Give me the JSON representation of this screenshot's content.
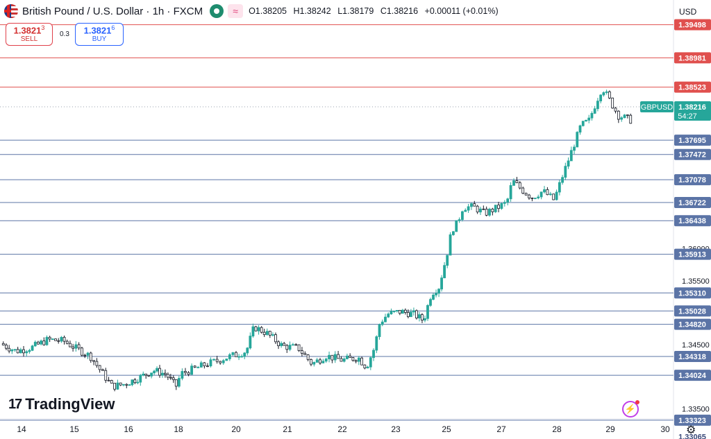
{
  "header": {
    "title": "British Pound / U.S. Dollar · 1h · FXCM",
    "ohlc": {
      "open": "O1.38205",
      "high": "H1.38242",
      "low": "L1.38179",
      "close": "C1.38216",
      "change": "+0.00011 (+0.01%)"
    }
  },
  "trade": {
    "sell_price": "1.3821",
    "sell_sup": "3",
    "sell_label": "SELL",
    "spread": "0.3",
    "buy_price": "1.3821",
    "buy_sup": "6",
    "buy_label": "BUY"
  },
  "currency": "USD",
  "brand": "TradingView",
  "icons": [
    "uk-us-flag-icon",
    "market-status-icon",
    "indicator-icon",
    "flash-icon",
    "settings-gear-icon"
  ],
  "colors": {
    "bull": "#26a69a",
    "bear": "#131722",
    "resistance": "#e0504e",
    "support": "#5b74a6",
    "current_label": "#26a69a"
  },
  "chart_data": {
    "type": "candlestick",
    "symbol": "GBPUSD",
    "timeframe": "1h",
    "y_ticks": [
      1.335,
      1.34,
      1.345,
      1.35,
      1.355,
      1.36,
      1.365,
      1.37,
      1.375,
      1.38
    ],
    "y_tick_labels": [
      "1.33500",
      "",
      "1.34500",
      "",
      "1.35500",
      "1.36000",
      "",
      "",
      "",
      ""
    ],
    "x_ticks": [
      {
        "label": "14",
        "day": 0
      },
      {
        "label": "15",
        "day": 1
      },
      {
        "label": "16",
        "day": 2
      },
      {
        "label": "18",
        "day": 3
      },
      {
        "label": "20",
        "day": 4
      },
      {
        "label": "21",
        "day": 5
      },
      {
        "label": "22",
        "day": 6
      },
      {
        "label": "23",
        "day": 7
      },
      {
        "label": "25",
        "day": 8
      },
      {
        "label": "27",
        "day": 9
      },
      {
        "label": "28",
        "day": 10
      },
      {
        "label": "29",
        "day": 11
      },
      {
        "label": "30",
        "day": 12
      }
    ],
    "resistance_levels": [
      1.39498,
      1.38981,
      1.38523
    ],
    "resistance_labels": [
      "1.39498",
      "1.38981",
      "1.38523"
    ],
    "support_levels": [
      1.37695,
      1.37472,
      1.37078,
      1.36722,
      1.36438,
      1.35913,
      1.3531,
      1.35028,
      1.3482,
      1.34318,
      1.34024,
      1.33323
    ],
    "support_labels": [
      "1.37695",
      "1.37472",
      "1.37078",
      "1.36722",
      "1.36438",
      "1.35913",
      "1.35310",
      "1.35028",
      "1.34820",
      "1.34318",
      "1.34024",
      "1.33323"
    ],
    "bottom_level": "1.33065",
    "current_price": 1.38216,
    "current_price_label": "1.38216",
    "countdown": "54:27",
    "price_path": [
      [
        -0.4,
        1.3452
      ],
      [
        -0.1,
        1.344
      ],
      [
        0.2,
        1.3446
      ],
      [
        0.5,
        1.3458
      ],
      [
        0.8,
        1.3456
      ],
      [
        1.0,
        1.3446
      ],
      [
        1.3,
        1.3432
      ],
      [
        1.5,
        1.3408
      ],
      [
        1.7,
        1.3385
      ],
      [
        1.9,
        1.3388
      ],
      [
        2.2,
        1.3398
      ],
      [
        2.5,
        1.341
      ],
      [
        2.75,
        1.3404
      ],
      [
        2.95,
        1.3385
      ],
      [
        3.05,
        1.3405
      ],
      [
        3.5,
        1.342
      ],
      [
        3.9,
        1.3432
      ],
      [
        4.2,
        1.344
      ],
      [
        4.35,
        1.3478
      ],
      [
        4.6,
        1.3468
      ],
      [
        4.9,
        1.3448
      ],
      [
        5.2,
        1.3445
      ],
      [
        5.45,
        1.342
      ],
      [
        5.7,
        1.3433
      ],
      [
        6.0,
        1.3426
      ],
      [
        6.3,
        1.343
      ],
      [
        6.45,
        1.3415
      ],
      [
        6.6,
        1.3445
      ],
      [
        6.7,
        1.3484
      ],
      [
        6.85,
        1.3498
      ],
      [
        7.1,
        1.3502
      ],
      [
        7.35,
        1.3498
      ],
      [
        7.55,
        1.3488
      ],
      [
        7.7,
        1.353
      ],
      [
        7.85,
        1.354
      ],
      [
        8.0,
        1.3588
      ],
      [
        8.1,
        1.363
      ],
      [
        8.2,
        1.364
      ],
      [
        8.3,
        1.3665
      ],
      [
        8.5,
        1.3665
      ],
      [
        8.7,
        1.3655
      ],
      [
        8.95,
        1.3665
      ],
      [
        9.1,
        1.3672
      ],
      [
        9.2,
        1.3706
      ],
      [
        9.4,
        1.369
      ],
      [
        9.55,
        1.368
      ],
      [
        9.75,
        1.369
      ],
      [
        9.95,
        1.3676
      ],
      [
        10.1,
        1.3712
      ],
      [
        10.3,
        1.3758
      ],
      [
        10.45,
        1.3792
      ],
      [
        10.6,
        1.38
      ],
      [
        10.75,
        1.3832
      ],
      [
        10.85,
        1.3852
      ],
      [
        11.0,
        1.383
      ],
      [
        11.15,
        1.3808
      ],
      [
        11.4,
        1.38
      ],
      [
        11.6,
        1.3788
      ],
      [
        11.9,
        1.379
      ],
      [
        12.1,
        1.3778
      ],
      [
        12.35,
        1.38
      ],
      [
        12.6,
        1.3812
      ],
      [
        12.9,
        1.3835
      ],
      [
        13.1,
        1.3842
      ],
      [
        13.3,
        1.3822
      ]
    ]
  }
}
